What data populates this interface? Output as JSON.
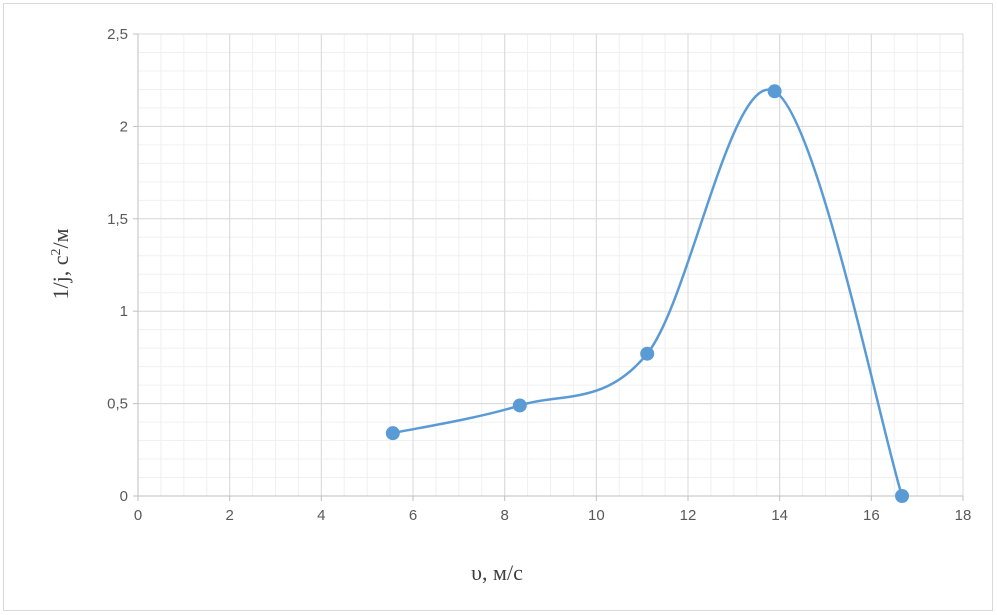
{
  "chart_data": {
    "type": "line",
    "title": "",
    "xlabel": "υ, м/с",
    "ylabel_main": "1/j, с",
    "ylabel_sup": "2",
    "ylabel_tail": "/м",
    "xlim": [
      0,
      18
    ],
    "ylim": [
      0,
      2.5
    ],
    "x_ticks": [
      "0",
      "2",
      "4",
      "6",
      "8",
      "10",
      "12",
      "14",
      "16",
      "18"
    ],
    "y_ticks": [
      "0",
      "0,5",
      "1",
      "1,5",
      "2",
      "2,5"
    ],
    "grid": true,
    "minor_grid": true,
    "smooth": true,
    "series": [
      {
        "color": "#5b9bd5",
        "x": [
          5.56,
          8.33,
          11.11,
          13.89,
          16.67
        ],
        "y": [
          0.34,
          0.49,
          0.77,
          2.19,
          0.0
        ]
      }
    ]
  }
}
